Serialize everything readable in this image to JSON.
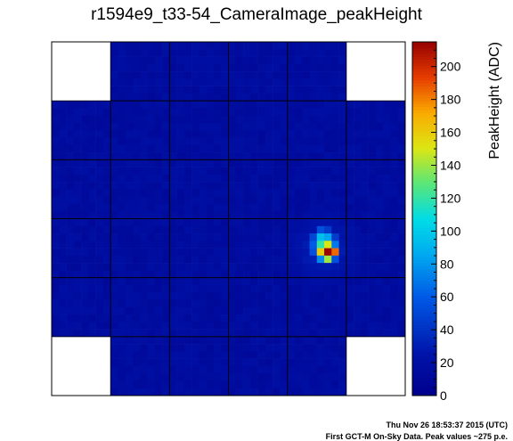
{
  "chart_data": {
    "type": "heatmap",
    "title": "r1594e9_t33-54_CameraImage_peakHeight",
    "zlabel": "PeakHeight (ADC)",
    "zlim": [
      0,
      215
    ],
    "z_ticks": [
      0,
      20,
      40,
      60,
      80,
      100,
      120,
      140,
      160,
      180,
      200
    ],
    "grid": {
      "modules_x": 6,
      "modules_y": 6,
      "pixels_per_module": 8,
      "missing_corner_modules": [
        [
          0,
          0
        ],
        [
          5,
          0
        ],
        [
          0,
          5
        ],
        [
          5,
          5
        ]
      ]
    },
    "background_level": 12,
    "hotspot": {
      "peak_value": 215,
      "rows": [
        {
          "px_row": 25,
          "px_col": 36,
          "value": 55
        },
        {
          "px_row": 25,
          "px_col": 37,
          "value": 45
        },
        {
          "px_row": 26,
          "px_col": 35,
          "value": 50
        },
        {
          "px_row": 26,
          "px_col": 36,
          "value": 95
        },
        {
          "px_row": 26,
          "px_col": 37,
          "value": 85
        },
        {
          "px_row": 26,
          "px_col": 38,
          "value": 45
        },
        {
          "px_row": 27,
          "px_col": 35,
          "value": 60
        },
        {
          "px_row": 27,
          "px_col": 36,
          "value": 120
        },
        {
          "px_row": 27,
          "px_col": 37,
          "value": 150
        },
        {
          "px_row": 27,
          "px_col": 38,
          "value": 70
        },
        {
          "px_row": 28,
          "px_col": 35,
          "value": 55
        },
        {
          "px_row": 28,
          "px_col": 36,
          "value": 160
        },
        {
          "px_row": 28,
          "px_col": 37,
          "value": 215
        },
        {
          "px_row": 28,
          "px_col": 38,
          "value": 185
        },
        {
          "px_row": 29,
          "px_col": 36,
          "value": 75
        },
        {
          "px_row": 29,
          "px_col": 37,
          "value": 140
        },
        {
          "px_row": 29,
          "px_col": 38,
          "value": 55
        }
      ]
    }
  },
  "footer": {
    "timestamp": "Thu Nov 26 18:53:37 2015 (UTC)",
    "caption": "First GCT-M On-Sky Data. Peak values ~275 p.e."
  }
}
